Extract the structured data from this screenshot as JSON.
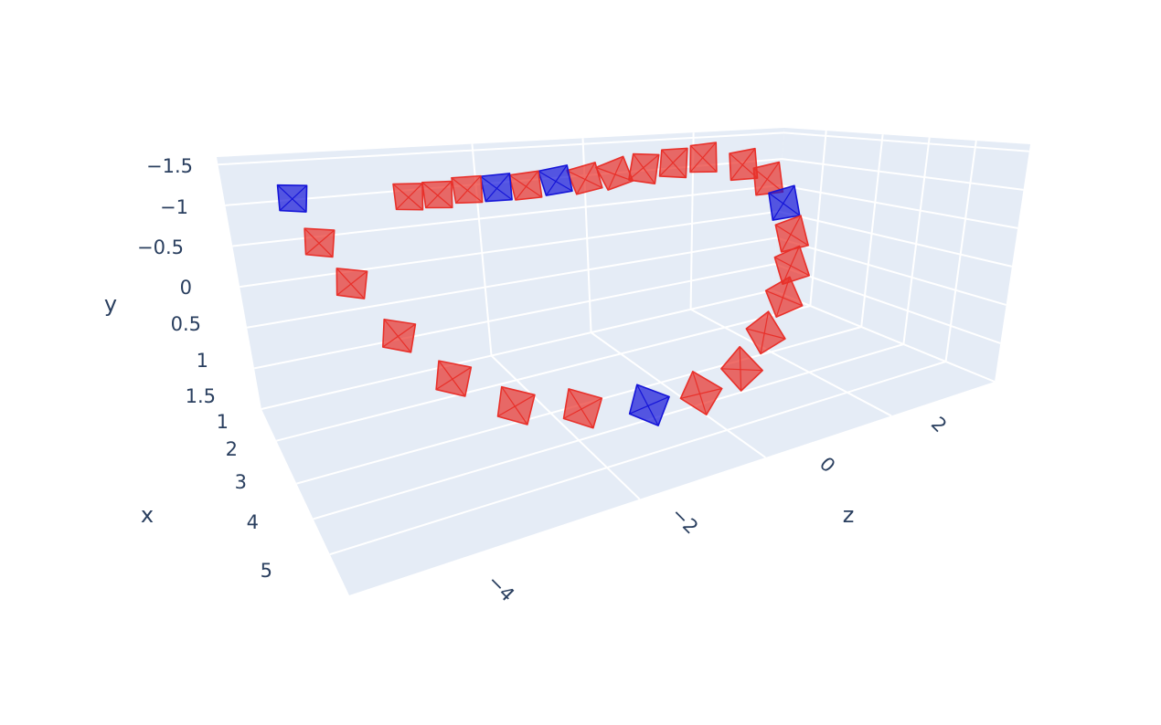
{
  "chart_data": {
    "type": "scatter",
    "title": "",
    "axes": {
      "x": {
        "title": "x",
        "tick_labels": [
          "1",
          "2",
          "3",
          "4",
          "5"
        ]
      },
      "y": {
        "title": "y",
        "tick_labels": [
          "−1.5",
          "−1",
          "−0.5",
          "0",
          "0.5",
          "1",
          "1.5"
        ],
        "reversed": true
      },
      "z": {
        "title": "z",
        "tick_labels": [
          "−4",
          "−2",
          "0",
          "2"
        ]
      }
    },
    "grid": true,
    "legend": "none",
    "colors": {
      "pane": "#e5ecf6",
      "grid": "#ffffff",
      "text": "#2a3f5f",
      "red": "#e8302a",
      "blue": "#1515d8"
    },
    "series": [
      {
        "marker": "camera-frustum",
        "points": [
          {
            "x": 1.0,
            "y": -1.3,
            "z": -4.6,
            "color": "blue"
          },
          {
            "x": 1.3,
            "y": -0.7,
            "z": -4.3,
            "color": "red"
          },
          {
            "x": 1.7,
            "y": -0.2,
            "z": -4.0,
            "color": "red"
          },
          {
            "x": 2.3,
            "y": 0.4,
            "z": -3.6,
            "color": "red"
          },
          {
            "x": 3.0,
            "y": 0.8,
            "z": -3.2,
            "color": "red"
          },
          {
            "x": 3.6,
            "y": 1.0,
            "z": -2.7,
            "color": "red"
          },
          {
            "x": 3.8,
            "y": 1.0,
            "z": -2.0,
            "color": "red"
          },
          {
            "x": 3.8,
            "y": 1.0,
            "z": -1.2,
            "color": "blue"
          },
          {
            "x": 3.5,
            "y": 1.0,
            "z": -0.4,
            "color": "red"
          },
          {
            "x": 3.0,
            "y": 0.9,
            "z": 0.4,
            "color": "red"
          },
          {
            "x": 2.5,
            "y": 0.6,
            "z": 1.0,
            "color": "red"
          },
          {
            "x": 2.2,
            "y": 0.2,
            "z": 1.4,
            "color": "red"
          },
          {
            "x": 2.0,
            "y": -0.2,
            "z": 1.6,
            "color": "red"
          },
          {
            "x": 1.8,
            "y": -0.6,
            "z": 1.7,
            "color": "red"
          },
          {
            "x": 1.6,
            "y": -1.0,
            "z": 1.7,
            "color": "blue"
          },
          {
            "x": 1.4,
            "y": -1.3,
            "z": 1.6,
            "color": "red"
          },
          {
            "x": 1.2,
            "y": -1.45,
            "z": 1.4,
            "color": "red"
          },
          {
            "x": 1.0,
            "y": -1.5,
            "z": 1.0,
            "color": "red"
          },
          {
            "x": 1.0,
            "y": -1.45,
            "z": 0.6,
            "color": "red"
          },
          {
            "x": 1.0,
            "y": -1.4,
            "z": 0.2,
            "color": "red"
          },
          {
            "x": 1.0,
            "y": -1.35,
            "z": -0.2,
            "color": "red"
          },
          {
            "x": 1.0,
            "y": -1.3,
            "z": -0.6,
            "color": "red"
          },
          {
            "x": 1.0,
            "y": -1.3,
            "z": -1.0,
            "color": "blue"
          },
          {
            "x": 1.0,
            "y": -1.25,
            "z": -1.4,
            "color": "red"
          },
          {
            "x": 1.0,
            "y": -1.25,
            "z": -1.8,
            "color": "blue"
          },
          {
            "x": 1.0,
            "y": -1.25,
            "z": -2.2,
            "color": "red"
          },
          {
            "x": 1.0,
            "y": -1.2,
            "z": -2.6,
            "color": "red"
          },
          {
            "x": 1.0,
            "y": -1.2,
            "z": -3.0,
            "color": "red"
          }
        ]
      }
    ]
  }
}
